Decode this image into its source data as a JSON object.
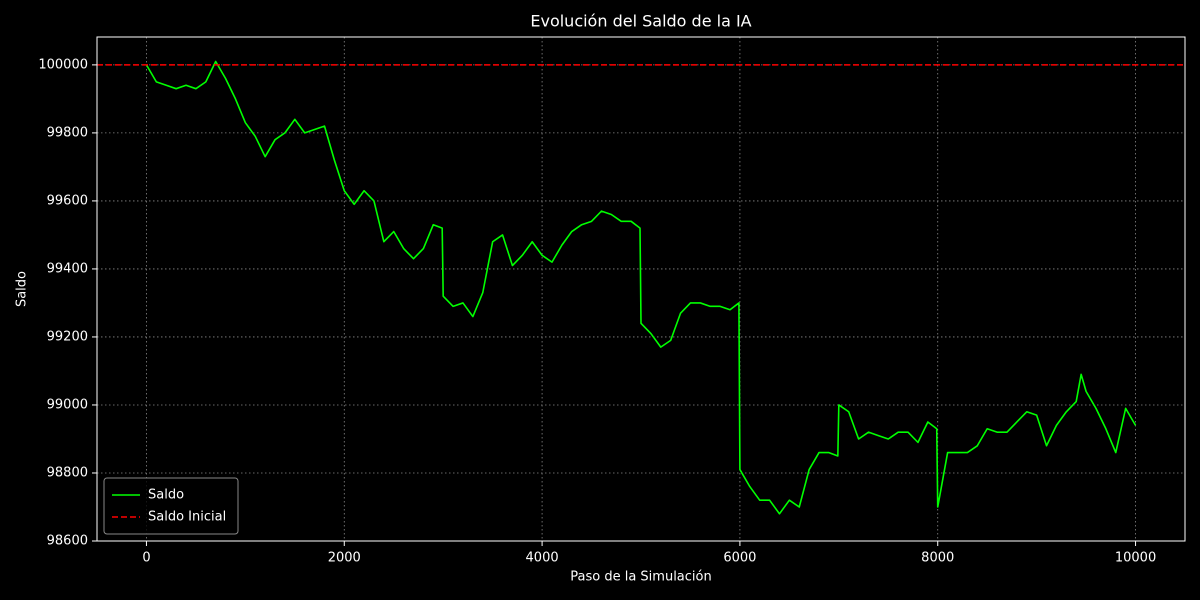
{
  "chart_data": {
    "type": "line",
    "title": "Evolución del Saldo de la IA",
    "xlabel": "Paso de la Simulación",
    "ylabel": "Saldo",
    "x": [
      0,
      100,
      200,
      300,
      400,
      500,
      600,
      700,
      800,
      900,
      1000,
      1100,
      1200,
      1300,
      1400,
      1500,
      1600,
      1700,
      1800,
      1900,
      2000,
      2100,
      2200,
      2300,
      2400,
      2500,
      2600,
      2700,
      2800,
      2900,
      2990,
      3000,
      3100,
      3200,
      3300,
      3400,
      3500,
      3600,
      3700,
      3800,
      3900,
      4000,
      4100,
      4200,
      4300,
      4400,
      4500,
      4600,
      4700,
      4800,
      4900,
      4990,
      5000,
      5100,
      5200,
      5300,
      5400,
      5500,
      5600,
      5700,
      5800,
      5900,
      5990,
      6000,
      6100,
      6200,
      6300,
      6400,
      6500,
      6600,
      6700,
      6800,
      6900,
      6990,
      7000,
      7100,
      7200,
      7300,
      7400,
      7500,
      7600,
      7700,
      7800,
      7900,
      7990,
      8000,
      8100,
      8200,
      8300,
      8400,
      8500,
      8600,
      8700,
      8800,
      8900,
      9000,
      9100,
      9200,
      9300,
      9400,
      9450,
      9500,
      9600,
      9700,
      9800,
      9900,
      10000
    ],
    "series": [
      {
        "name": "Saldo",
        "color": "#00ff00",
        "values": [
          100000,
          99950,
          99940,
          99930,
          99940,
          99930,
          99950,
          100010,
          99960,
          99900,
          99830,
          99790,
          99730,
          99780,
          99800,
          99840,
          99800,
          99810,
          99820,
          99720,
          99630,
          99590,
          99630,
          99600,
          99480,
          99510,
          99460,
          99430,
          99460,
          99530,
          99520,
          99320,
          99290,
          99300,
          99260,
          99330,
          99480,
          99500,
          99410,
          99440,
          99480,
          99440,
          99420,
          99470,
          99510,
          99530,
          99540,
          99570,
          99560,
          99540,
          99540,
          99520,
          99240,
          99210,
          99170,
          99190,
          99270,
          99300,
          99300,
          99290,
          99290,
          99280,
          99300,
          98810,
          98760,
          98720,
          98720,
          98680,
          98720,
          98700,
          98810,
          98860,
          98860,
          98850,
          99000,
          98980,
          98900,
          98920,
          98910,
          98900,
          98920,
          98920,
          98890,
          98950,
          98930,
          98700,
          98860,
          98860,
          98860,
          98880,
          98930,
          98920,
          98920,
          98950,
          98980,
          98970,
          98880,
          98940,
          98980,
          99010,
          99090,
          99040,
          98990,
          98930,
          98860,
          98990,
          98940
        ]
      }
    ],
    "hlines": [
      {
        "name": "Saldo Inicial",
        "color": "#ff0000",
        "value": 100000
      }
    ],
    "xlim": [
      -500,
      10500
    ],
    "ylim": [
      98600,
      100082
    ],
    "xticks": [
      0,
      2000,
      4000,
      6000,
      8000,
      10000
    ],
    "yticks": [
      98600,
      98800,
      99000,
      99200,
      99400,
      99600,
      99800,
      100000
    ],
    "grid": true,
    "legend": "lower left"
  }
}
